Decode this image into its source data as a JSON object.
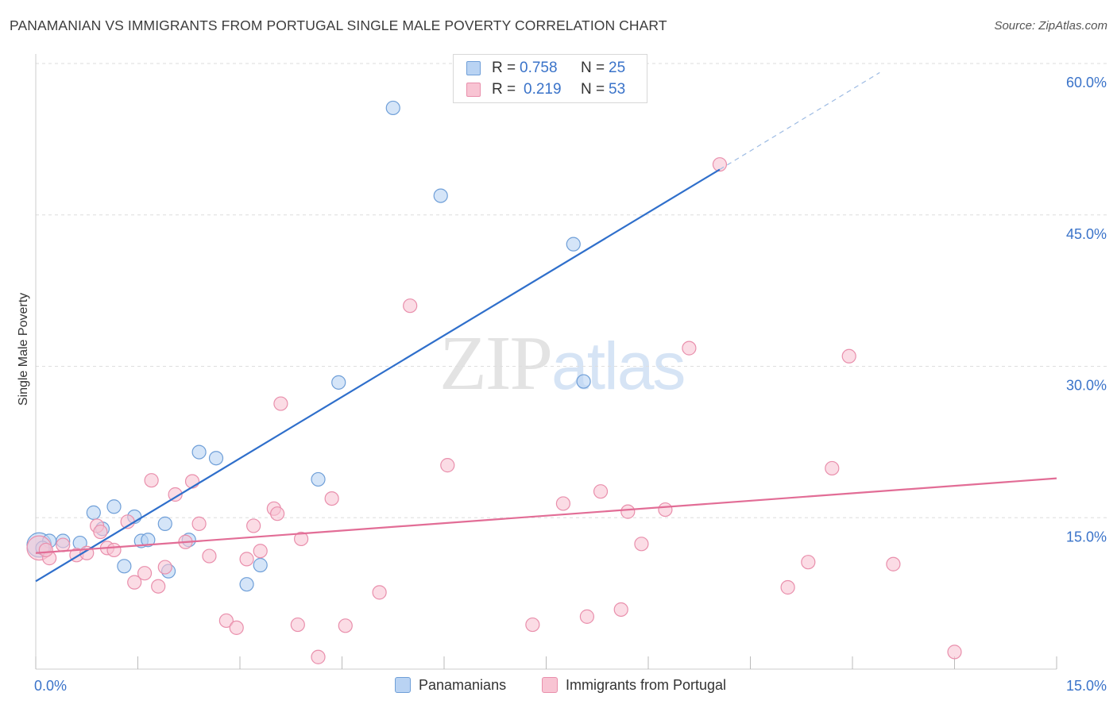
{
  "title": "PANAMANIAN VS IMMIGRANTS FROM PORTUGAL SINGLE MALE POVERTY CORRELATION CHART",
  "source": "Source: ZipAtlas.com",
  "watermark": {
    "zip": "ZIP",
    "atlas": "atlas"
  },
  "legend": {
    "rows": [
      {
        "r_label": "R =",
        "r_value": "0.758",
        "n_label": "N =",
        "n_value": "25"
      },
      {
        "r_label": "R =",
        "r_value": "0.219",
        "n_label": "N =",
        "n_value": "53"
      }
    ]
  },
  "colors": {
    "blue_fill": "#b9d3f3",
    "blue_stroke": "#6f9fd8",
    "blue_line": "#2f6fcb",
    "pink_fill": "#f8c4d3",
    "pink_stroke": "#e98fac",
    "pink_line": "#e26d96",
    "grid": "#dedede",
    "axis_text": "#3a73c9"
  },
  "chart_data": {
    "type": "scatter",
    "title": "PANAMANIAN VS IMMIGRANTS FROM PORTUGAL SINGLE MALE POVERTY CORRELATION CHART",
    "xlabel": "",
    "ylabel": "Single Male Poverty",
    "xlim": [
      0,
      15
    ],
    "ylim": [
      0,
      60
    ],
    "x_tick_labels": [
      {
        "value": 0,
        "label": "0.0%"
      },
      {
        "value": 15,
        "label": "15.0%"
      }
    ],
    "y_tick_labels": [
      {
        "value": 15,
        "label": "15.0%"
      },
      {
        "value": 30,
        "label": "30.0%"
      },
      {
        "value": 45,
        "label": "45.0%"
      },
      {
        "value": 60,
        "label": "60.0%"
      }
    ],
    "grid": true,
    "legend_position": "bottom",
    "series": [
      {
        "name": "Panamanians",
        "color": "blue",
        "points": [
          [
            0.05,
            12.3
          ],
          [
            0.2,
            12.7
          ],
          [
            0.4,
            12.7
          ],
          [
            0.65,
            12.5
          ],
          [
            0.85,
            15.5
          ],
          [
            0.98,
            13.9
          ],
          [
            1.15,
            16.1
          ],
          [
            1.3,
            10.2
          ],
          [
            1.45,
            15.1
          ],
          [
            1.55,
            12.7
          ],
          [
            1.65,
            12.8
          ],
          [
            1.9,
            14.4
          ],
          [
            1.95,
            9.7
          ],
          [
            2.25,
            12.8
          ],
          [
            2.4,
            21.5
          ],
          [
            2.65,
            20.9
          ],
          [
            3.1,
            8.4
          ],
          [
            3.3,
            10.3
          ],
          [
            4.15,
            18.8
          ],
          [
            4.45,
            28.4
          ],
          [
            5.25,
            55.6
          ],
          [
            5.95,
            46.9
          ],
          [
            7.9,
            42.1
          ],
          [
            8.05,
            28.5
          ],
          [
            0.1,
            12.0
          ]
        ],
        "point_sizes": [
          1.8,
          1.0,
          1.0,
          1.0,
          1.0,
          1.0,
          1.0,
          1.0,
          1.0,
          1.0,
          1.0,
          1.0,
          1.0,
          1.0,
          1.0,
          1.0,
          1.0,
          1.0,
          1.0,
          1.0,
          1.0,
          1.0,
          1.0,
          1.0,
          1.0
        ],
        "trend": {
          "x": [
            0,
            10.05
          ],
          "y": [
            8.7,
            49.5
          ],
          "dashed_extension": {
            "x": [
              10.05,
              12.4
            ],
            "y": [
              49.5,
              59.1
            ]
          }
        }
      },
      {
        "name": "Immigrants from Portugal",
        "color": "pink",
        "points": [
          [
            0.05,
            12.0
          ],
          [
            0.2,
            11.0
          ],
          [
            0.4,
            12.3
          ],
          [
            0.6,
            11.3
          ],
          [
            0.75,
            11.5
          ],
          [
            0.9,
            14.2
          ],
          [
            0.95,
            13.6
          ],
          [
            1.05,
            12.0
          ],
          [
            1.15,
            11.8
          ],
          [
            1.35,
            14.6
          ],
          [
            1.45,
            8.6
          ],
          [
            1.6,
            9.5
          ],
          [
            1.7,
            18.7
          ],
          [
            1.8,
            8.2
          ],
          [
            1.9,
            10.1
          ],
          [
            2.05,
            17.3
          ],
          [
            2.2,
            12.6
          ],
          [
            2.3,
            18.6
          ],
          [
            2.4,
            14.4
          ],
          [
            2.55,
            11.2
          ],
          [
            2.8,
            4.8
          ],
          [
            2.95,
            4.1
          ],
          [
            3.1,
            10.9
          ],
          [
            3.2,
            14.2
          ],
          [
            3.3,
            11.7
          ],
          [
            3.5,
            15.9
          ],
          [
            3.55,
            15.4
          ],
          [
            3.6,
            26.3
          ],
          [
            3.85,
            4.4
          ],
          [
            3.9,
            12.9
          ],
          [
            4.15,
            1.2
          ],
          [
            4.35,
            16.9
          ],
          [
            4.55,
            4.3
          ],
          [
            5.05,
            7.6
          ],
          [
            5.5,
            36.0
          ],
          [
            6.05,
            20.2
          ],
          [
            7.3,
            4.4
          ],
          [
            7.75,
            16.4
          ],
          [
            8.1,
            5.2
          ],
          [
            8.3,
            17.6
          ],
          [
            8.6,
            5.9
          ],
          [
            8.7,
            15.6
          ],
          [
            8.9,
            12.4
          ],
          [
            9.25,
            15.8
          ],
          [
            9.6,
            31.8
          ],
          [
            10.05,
            50.0
          ],
          [
            11.05,
            8.1
          ],
          [
            11.35,
            10.6
          ],
          [
            11.7,
            19.9
          ],
          [
            11.95,
            31.0
          ],
          [
            12.6,
            10.4
          ],
          [
            13.5,
            1.7
          ],
          [
            0.15,
            11.8
          ]
        ],
        "point_sizes": [
          1.8,
          1.0,
          1.0,
          1.0,
          1.0,
          1.0,
          1.0,
          1.0,
          1.0,
          1.0,
          1.0,
          1.0,
          1.0,
          1.0,
          1.0,
          1.0,
          1.0,
          1.0,
          1.0,
          1.0,
          1.0,
          1.0,
          1.0,
          1.0,
          1.0,
          1.0,
          1.0,
          1.0,
          1.0,
          1.0,
          1.0,
          1.0,
          1.0,
          1.0,
          1.0,
          1.0,
          1.0,
          1.0,
          1.0,
          1.0,
          1.0,
          1.0,
          1.0,
          1.0,
          1.0,
          1.0,
          1.0,
          1.0,
          1.0,
          1.0,
          1.0,
          1.0,
          1.0
        ],
        "trend": {
          "x": [
            0,
            15
          ],
          "y": [
            11.5,
            18.9
          ]
        }
      }
    ]
  }
}
